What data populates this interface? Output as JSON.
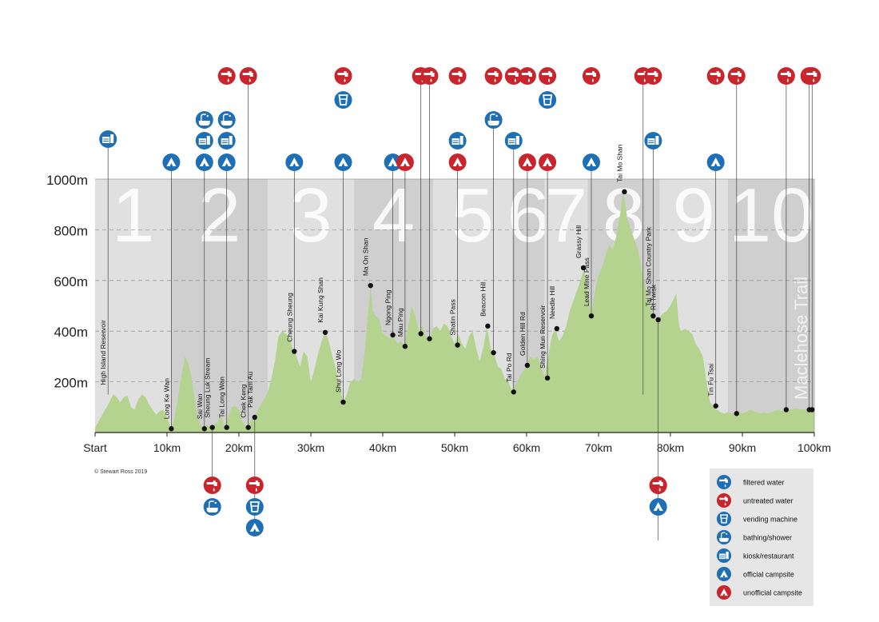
{
  "copyright": "© Stewart Ross 2019",
  "legend": [
    {
      "icon": "tap-icon",
      "color": "blue",
      "label": "filtered water"
    },
    {
      "icon": "tap-icon",
      "color": "red",
      "label": "untreated water"
    },
    {
      "icon": "vending-icon",
      "color": "blue",
      "label": "vending machine"
    },
    {
      "icon": "shower-icon",
      "color": "blue",
      "label": "bathing/shower"
    },
    {
      "icon": "kiosk-icon",
      "color": "blue",
      "label": "kiosk/restaurant"
    },
    {
      "icon": "tent-icon",
      "color": "blue",
      "label": "official campsite"
    },
    {
      "icon": "tent-icon",
      "color": "red",
      "label": "unofficial campsite"
    }
  ],
  "colors": {
    "blue": "#1f6fb5",
    "red": "#c9252c",
    "terrain": "#b3d38e",
    "panel": "#e0e0e0",
    "panel_alt": "#cfcfcf",
    "legend_bg": "#e6e6e6"
  },
  "chart_data": {
    "type": "area",
    "xlabel": "",
    "ylabel": "",
    "xlim": [
      0,
      100
    ],
    "ylim": [
      0,
      1000
    ],
    "x_ticks": [
      "Start",
      "10km",
      "20km",
      "30km",
      "40km",
      "50km",
      "60km",
      "70km",
      "80km",
      "90km",
      "100km"
    ],
    "y_ticks": [
      "200m",
      "400m",
      "600m",
      "800m",
      "1000m"
    ],
    "grid": true,
    "watermark": "Maclehose Trail",
    "section_numbers": [
      {
        "label": "1",
        "start": 0,
        "end": 10.6
      },
      {
        "label": "2",
        "start": 10.6,
        "end": 24
      },
      {
        "label": "3",
        "start": 24,
        "end": 36
      },
      {
        "label": "4",
        "start": 36,
        "end": 47
      },
      {
        "label": "5",
        "start": 47,
        "end": 58
      },
      {
        "label": "6",
        "start": 58,
        "end": 62.5
      },
      {
        "label": "7",
        "start": 62.5,
        "end": 68.5
      },
      {
        "label": "8",
        "start": 68.5,
        "end": 78.5
      },
      {
        "label": "9",
        "start": 78.5,
        "end": 88
      },
      {
        "label": "10",
        "start": 88,
        "end": 100
      }
    ],
    "profile": [
      [
        0,
        20
      ],
      [
        1,
        70
      ],
      [
        2,
        120
      ],
      [
        2.5,
        150
      ],
      [
        3,
        140
      ],
      [
        3.5,
        120
      ],
      [
        4,
        140
      ],
      [
        4.5,
        145
      ],
      [
        5,
        100
      ],
      [
        5.5,
        90
      ],
      [
        6,
        130
      ],
      [
        6.5,
        150
      ],
      [
        7,
        140
      ],
      [
        7.5,
        110
      ],
      [
        8,
        90
      ],
      [
        8.5,
        70
      ],
      [
        9,
        85
      ],
      [
        9.5,
        90
      ],
      [
        10,
        60
      ],
      [
        10.6,
        15
      ],
      [
        11,
        50
      ],
      [
        11.5,
        130
      ],
      [
        12,
        220
      ],
      [
        12.5,
        300
      ],
      [
        13,
        270
      ],
      [
        13.5,
        200
      ],
      [
        14,
        100
      ],
      [
        14.5,
        40
      ],
      [
        15,
        15
      ],
      [
        15.5,
        30
      ],
      [
        16,
        20
      ],
      [
        16.5,
        30
      ],
      [
        17,
        40
      ],
      [
        17.5,
        70
      ],
      [
        18,
        20
      ],
      [
        18.5,
        60
      ],
      [
        19,
        100
      ],
      [
        19.5,
        105
      ],
      [
        20,
        90
      ],
      [
        20.5,
        40
      ],
      [
        21,
        20
      ],
      [
        21.5,
        40
      ],
      [
        22,
        60
      ],
      [
        22.5,
        80
      ],
      [
        23,
        110
      ],
      [
        23.5,
        130
      ],
      [
        24,
        160
      ],
      [
        24.5,
        210
      ],
      [
        25,
        280
      ],
      [
        25.5,
        380
      ],
      [
        26,
        400
      ],
      [
        26.5,
        390
      ],
      [
        27,
        380
      ],
      [
        27.5,
        330
      ],
      [
        28,
        300
      ],
      [
        28.5,
        260
      ],
      [
        29,
        320
      ],
      [
        29.5,
        300
      ],
      [
        30,
        200
      ],
      [
        30.5,
        250
      ],
      [
        31,
        310
      ],
      [
        31.5,
        360
      ],
      [
        32,
        400
      ],
      [
        32.5,
        360
      ],
      [
        33,
        300
      ],
      [
        33.5,
        250
      ],
      [
        34,
        180
      ],
      [
        34.5,
        120
      ],
      [
        35,
        150
      ],
      [
        35.5,
        200
      ],
      [
        36,
        210
      ],
      [
        36.5,
        200
      ],
      [
        37,
        210
      ],
      [
        37.5,
        320
      ],
      [
        38,
        480
      ],
      [
        38.3,
        580
      ],
      [
        38.6,
        480
      ],
      [
        39,
        460
      ],
      [
        39.5,
        450
      ],
      [
        40,
        390
      ],
      [
        40.5,
        380
      ],
      [
        41,
        370
      ],
      [
        41.5,
        385
      ],
      [
        42,
        350
      ],
      [
        42.5,
        360
      ],
      [
        43,
        345
      ],
      [
        43.5,
        410
      ],
      [
        44,
        500
      ],
      [
        44.5,
        460
      ],
      [
        45,
        400
      ],
      [
        45.5,
        420
      ],
      [
        46,
        380
      ],
      [
        46.5,
        370
      ],
      [
        47,
        410
      ],
      [
        47.5,
        420
      ],
      [
        48,
        400
      ],
      [
        48.5,
        430
      ],
      [
        49,
        420
      ],
      [
        49.5,
        380
      ],
      [
        50,
        350
      ],
      [
        50.5,
        390
      ],
      [
        51,
        350
      ],
      [
        51.5,
        330
      ],
      [
        52,
        380
      ],
      [
        52.5,
        400
      ],
      [
        53,
        330
      ],
      [
        53.5,
        280
      ],
      [
        54,
        340
      ],
      [
        54.5,
        420
      ],
      [
        55,
        330
      ],
      [
        55.5,
        310
      ],
      [
        56,
        260
      ],
      [
        56.5,
        250
      ],
      [
        57,
        210
      ],
      [
        57.5,
        200
      ],
      [
        58,
        160
      ],
      [
        58.5,
        190
      ],
      [
        59,
        220
      ],
      [
        59.5,
        240
      ],
      [
        60,
        265
      ],
      [
        60.5,
        300
      ],
      [
        61,
        290
      ],
      [
        61.5,
        300
      ],
      [
        62,
        260
      ],
      [
        62.5,
        220
      ],
      [
        63,
        300
      ],
      [
        63.5,
        380
      ],
      [
        64,
        410
      ],
      [
        64.5,
        360
      ],
      [
        65,
        380
      ],
      [
        65.5,
        420
      ],
      [
        66,
        480
      ],
      [
        66.5,
        520
      ],
      [
        67,
        560
      ],
      [
        67.5,
        600
      ],
      [
        68,
        650
      ],
      [
        68.5,
        560
      ],
      [
        69,
        460
      ],
      [
        69.5,
        560
      ],
      [
        70,
        620
      ],
      [
        70.5,
        650
      ],
      [
        71,
        700
      ],
      [
        71.5,
        740
      ],
      [
        72,
        720
      ],
      [
        72.5,
        780
      ],
      [
        73,
        860
      ],
      [
        73.4,
        950
      ],
      [
        73.8,
        890
      ],
      [
        74,
        840
      ],
      [
        74.5,
        800
      ],
      [
        75,
        760
      ],
      [
        75.5,
        720
      ],
      [
        76,
        640
      ],
      [
        76.5,
        580
      ],
      [
        77,
        520
      ],
      [
        77.5,
        460
      ],
      [
        78,
        440
      ],
      [
        78.3,
        440
      ],
      [
        78.6,
        460
      ],
      [
        79,
        470
      ],
      [
        79.5,
        480
      ],
      [
        80,
        500
      ],
      [
        80.5,
        530
      ],
      [
        80.8,
        550
      ],
      [
        81.2,
        420
      ],
      [
        81.5,
        400
      ],
      [
        82,
        410
      ],
      [
        82.5,
        400
      ],
      [
        83,
        390
      ],
      [
        83.5,
        350
      ],
      [
        84,
        330
      ],
      [
        84.5,
        300
      ],
      [
        85,
        200
      ],
      [
        85.5,
        120
      ],
      [
        86,
        100
      ],
      [
        86.5,
        90
      ],
      [
        87,
        80
      ],
      [
        87.5,
        75
      ],
      [
        88,
        80
      ],
      [
        88.5,
        75
      ],
      [
        89,
        80
      ],
      [
        89.5,
        85
      ],
      [
        90,
        75
      ],
      [
        90.5,
        80
      ],
      [
        91,
        90
      ],
      [
        91.5,
        85
      ],
      [
        92,
        80
      ],
      [
        92.5,
        75
      ],
      [
        93,
        80
      ],
      [
        93.5,
        75
      ],
      [
        94,
        80
      ],
      [
        94.5,
        85
      ],
      [
        95,
        90
      ],
      [
        95.5,
        85
      ],
      [
        96,
        88
      ],
      [
        96.5,
        90
      ],
      [
        97,
        92
      ],
      [
        97.5,
        95
      ],
      [
        98,
        92
      ],
      [
        98.5,
        90
      ],
      [
        99,
        92
      ],
      [
        99.5,
        90
      ],
      [
        100,
        92
      ]
    ],
    "places": [
      {
        "name": "High Island Reservoir",
        "x": 1.8,
        "elev": null,
        "icons_above": [
          "kiosk-blue"
        ],
        "icons_below": []
      },
      {
        "name": "Long Ke Wan",
        "x": 10.6,
        "elev": 15,
        "icons_above": [
          "tent-blue"
        ],
        "icons_below": []
      },
      {
        "name": "Sai Wan",
        "x": 15.2,
        "elev": 15,
        "icons_above": [
          "tent-blue",
          "kiosk-blue",
          "shower-blue"
        ],
        "icons_below": []
      },
      {
        "name": "Sheung Luk Stream",
        "x": 16.3,
        "elev": 20,
        "icons_above": [],
        "icons_below": [
          "untreated-red",
          "shower-blue"
        ]
      },
      {
        "name": "Tai Long Wan",
        "x": 18.3,
        "elev": 20,
        "icons_above": [
          "tent-blue",
          "kiosk-blue",
          "shower-blue",
          "untreated-red"
        ],
        "icons_below": []
      },
      {
        "name": "Chek Keng",
        "x": 21.3,
        "elev": 20,
        "icons_above": [
          "untreated-red"
        ],
        "icons_below": []
      },
      {
        "name": "Pak Tam Au",
        "x": 22.2,
        "elev": 60,
        "icons_above": [],
        "icons_below": [
          "untreated-red",
          "vending-blue",
          "tent-blue"
        ]
      },
      {
        "name": "Cheung Sheung",
        "x": 27.7,
        "elev": 320,
        "icons_above": [
          "tent-blue"
        ],
        "icons_below": []
      },
      {
        "name": "Kai Kung Shan",
        "x": 32,
        "elev": 395,
        "icons_above": [],
        "icons_below": []
      },
      {
        "name": "Shui Long Wo",
        "x": 34.5,
        "elev": 120,
        "icons_above": [
          "tent-blue",
          "vending-blue",
          "untreated-red"
        ],
        "icons_below": []
      },
      {
        "name": "Ma On Shan",
        "x": 38.3,
        "elev": 580,
        "icons_above": [],
        "icons_below": []
      },
      {
        "name": "Ngong Ping",
        "x": 41.4,
        "elev": 385,
        "icons_above": [
          "tent-blue"
        ],
        "icons_below": []
      },
      {
        "name": "Mau Ping",
        "x": 43.1,
        "elev": 340,
        "icons_above": [
          "tent-red"
        ],
        "icons_below": []
      },
      {
        "name": "",
        "x": 45.3,
        "elev": 390,
        "icons_above": [
          "untreated-red"
        ],
        "icons_below": []
      },
      {
        "name": "",
        "x": 46.5,
        "elev": 370,
        "icons_above": [
          "untreated-red"
        ],
        "icons_below": []
      },
      {
        "name": "Shatin Pass",
        "x": 50.4,
        "elev": 345,
        "icons_above": [
          "tent-red",
          "kiosk-blue",
          "untreated-red"
        ],
        "icons_below": []
      },
      {
        "name": "Beacon Hill",
        "x": 54.6,
        "elev": 420,
        "icons_above": [],
        "icons_below": []
      },
      {
        "name": "",
        "x": 55.4,
        "elev": 315,
        "icons_above": [
          "shower-blue",
          "untreated-red"
        ],
        "icons_below": []
      },
      {
        "name": "Tai Po Rd",
        "x": 58.2,
        "elev": 160,
        "icons_above": [
          "kiosk-blue",
          "untreated-red"
        ],
        "icons_below": []
      },
      {
        "name": "Golden Hill Rd",
        "x": 60.1,
        "elev": 265,
        "icons_above": [
          "tent-red",
          "untreated-red"
        ],
        "icons_below": []
      },
      {
        "name": "Shing Mun Reservoir",
        "x": 62.9,
        "elev": 215,
        "icons_above": [
          "tent-red",
          "vending-blue",
          "untreated-red"
        ],
        "icons_below": []
      },
      {
        "name": "Needle Hill",
        "x": 64.2,
        "elev": 410,
        "icons_above": [],
        "icons_below": []
      },
      {
        "name": "Grassy Hill",
        "x": 67.9,
        "elev": 650,
        "icons_above": [],
        "icons_below": []
      },
      {
        "name": "Lead Mine Pass",
        "x": 69,
        "elev": 460,
        "icons_above": [
          "tent-blue",
          "untreated-red"
        ],
        "icons_below": []
      },
      {
        "name": "Tai Mo Shan",
        "x": 73.6,
        "elev": 950,
        "icons_above": [],
        "icons_below": []
      },
      {
        "name": "",
        "x": 76.2,
        "elev": null,
        "icons_above": [
          "untreated-red"
        ],
        "icons_below": []
      },
      {
        "name": "Tai Mo Shan Country Park",
        "x": 77.6,
        "elev": 460,
        "icons_above": [
          "kiosk-blue",
          "untreated-red"
        ],
        "icons_below": []
      },
      {
        "name": "Rt Twisk",
        "x": 78.3,
        "elev": 445,
        "icons_above": [],
        "icons_below": [
          "untreated-red",
          "tent-blue"
        ]
      },
      {
        "name": "Tin Fu Tsai",
        "x": 86.3,
        "elev": 105,
        "icons_above": [
          "tent-blue",
          "untreated-red"
        ],
        "icons_below": []
      },
      {
        "name": "",
        "x": 89.2,
        "elev": 75,
        "icons_above": [
          "untreated-red"
        ],
        "icons_below": []
      },
      {
        "name": "",
        "x": 96.1,
        "elev": 90,
        "icons_above": [
          "untreated-red"
        ],
        "icons_below": []
      },
      {
        "name": "",
        "x": 99.3,
        "elev": 90,
        "icons_above": [
          "untreated-red"
        ],
        "icons_below": []
      },
      {
        "name": "",
        "x": 99.7,
        "elev": 90,
        "icons_above": [
          "untreated-red"
        ],
        "icons_below": []
      }
    ]
  }
}
